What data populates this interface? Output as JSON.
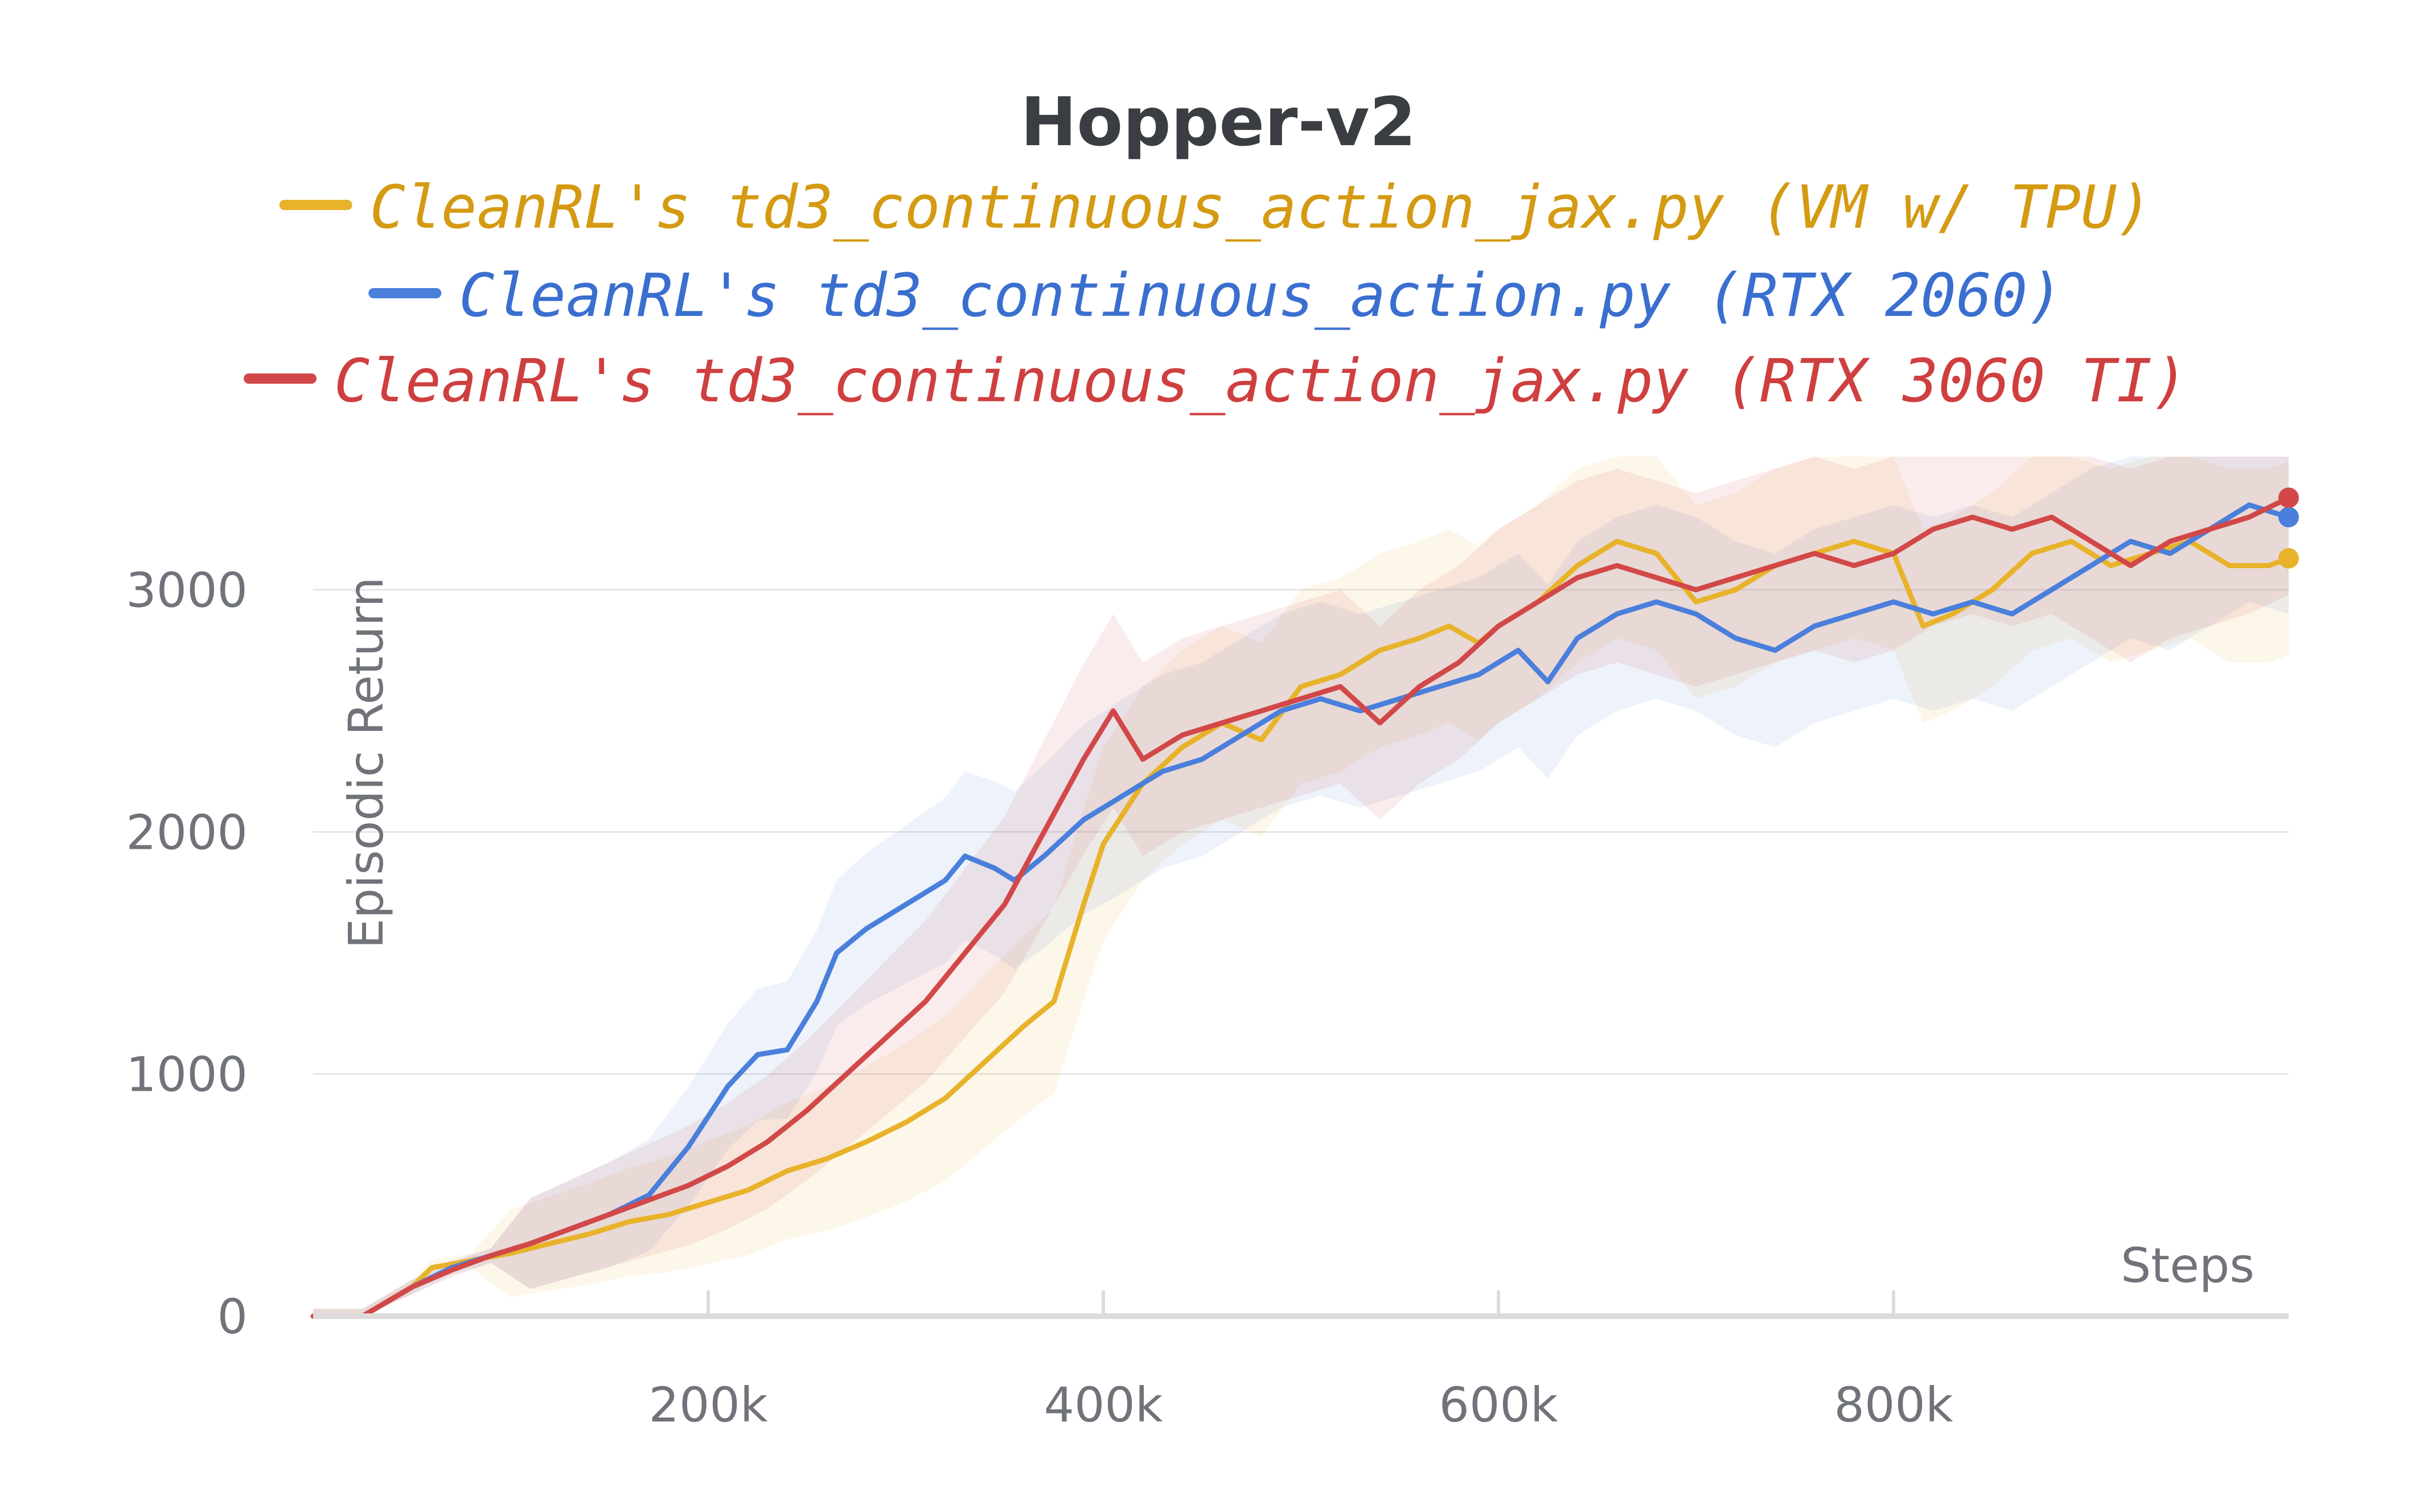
{
  "chart_data": {
    "type": "line",
    "title": "Hopper-v2",
    "xlabel": "Steps",
    "ylabel": "Episodic Return",
    "xlim": [
      0,
      1000000
    ],
    "ylim": [
      0,
      3500
    ],
    "x_ticks": [
      200000,
      400000,
      600000,
      800000
    ],
    "x_tick_labels": [
      "200k",
      "400k",
      "600k",
      "800k"
    ],
    "y_ticks": [
      0,
      1000,
      2000,
      3000
    ],
    "y_tick_labels": [
      "0",
      "1000",
      "2000",
      "3000"
    ],
    "grid": true,
    "legend_position": "top",
    "series": [
      {
        "name": "CleanRL's td3_continuous_action_jax.py (VM w/ TPU)",
        "color": "#e8b32a",
        "label_color": "#d49a12",
        "points": [
          [
            0,
            0
          ],
          [
            25000,
            0
          ],
          [
            50000,
            120
          ],
          [
            60000,
            200
          ],
          [
            80000,
            230
          ],
          [
            100000,
            260
          ],
          [
            120000,
            300
          ],
          [
            140000,
            340
          ],
          [
            160000,
            390
          ],
          [
            180000,
            420
          ],
          [
            200000,
            470
          ],
          [
            220000,
            520
          ],
          [
            240000,
            600
          ],
          [
            260000,
            650
          ],
          [
            280000,
            720
          ],
          [
            300000,
            800
          ],
          [
            320000,
            900
          ],
          [
            340000,
            1050
          ],
          [
            360000,
            1200
          ],
          [
            375000,
            1300
          ],
          [
            390000,
            1700
          ],
          [
            400000,
            1950
          ],
          [
            420000,
            2200
          ],
          [
            440000,
            2350
          ],
          [
            460000,
            2450
          ],
          [
            480000,
            2380
          ],
          [
            500000,
            2600
          ],
          [
            520000,
            2650
          ],
          [
            540000,
            2750
          ],
          [
            560000,
            2800
          ],
          [
            575000,
            2850
          ],
          [
            590000,
            2780
          ],
          [
            600000,
            2850
          ],
          [
            620000,
            2950
          ],
          [
            640000,
            3100
          ],
          [
            660000,
            3200
          ],
          [
            680000,
            3150
          ],
          [
            700000,
            2950
          ],
          [
            720000,
            3000
          ],
          [
            740000,
            3100
          ],
          [
            760000,
            3150
          ],
          [
            780000,
            3200
          ],
          [
            800000,
            3150
          ],
          [
            815000,
            2850
          ],
          [
            830000,
            2900
          ],
          [
            850000,
            3000
          ],
          [
            870000,
            3150
          ],
          [
            890000,
            3200
          ],
          [
            910000,
            3100
          ],
          [
            930000,
            3150
          ],
          [
            950000,
            3200
          ],
          [
            970000,
            3100
          ],
          [
            990000,
            3100
          ],
          [
            1000000,
            3130
          ]
        ]
      },
      {
        "name": "CleanRL's td3_continuous_action.py (RTX 2060)",
        "color": "#4a7fdb",
        "label_color": "#3a6fcf",
        "points": [
          [
            0,
            0
          ],
          [
            25000,
            0
          ],
          [
            50000,
            120
          ],
          [
            70000,
            200
          ],
          [
            90000,
            250
          ],
          [
            110000,
            300
          ],
          [
            130000,
            360
          ],
          [
            150000,
            420
          ],
          [
            170000,
            500
          ],
          [
            190000,
            700
          ],
          [
            210000,
            950
          ],
          [
            225000,
            1080
          ],
          [
            240000,
            1100
          ],
          [
            255000,
            1300
          ],
          [
            265000,
            1500
          ],
          [
            280000,
            1600
          ],
          [
            300000,
            1700
          ],
          [
            320000,
            1800
          ],
          [
            330000,
            1900
          ],
          [
            345000,
            1850
          ],
          [
            355000,
            1800
          ],
          [
            370000,
            1900
          ],
          [
            390000,
            2050
          ],
          [
            410000,
            2150
          ],
          [
            430000,
            2250
          ],
          [
            450000,
            2300
          ],
          [
            470000,
            2400
          ],
          [
            490000,
            2500
          ],
          [
            510000,
            2550
          ],
          [
            530000,
            2500
          ],
          [
            550000,
            2550
          ],
          [
            570000,
            2600
          ],
          [
            590000,
            2650
          ],
          [
            610000,
            2750
          ],
          [
            625000,
            2620
          ],
          [
            640000,
            2800
          ],
          [
            660000,
            2900
          ],
          [
            680000,
            2950
          ],
          [
            700000,
            2900
          ],
          [
            720000,
            2800
          ],
          [
            740000,
            2750
          ],
          [
            760000,
            2850
          ],
          [
            780000,
            2900
          ],
          [
            800000,
            2950
          ],
          [
            820000,
            2900
          ],
          [
            840000,
            2950
          ],
          [
            860000,
            2900
          ],
          [
            880000,
            3000
          ],
          [
            900000,
            3100
          ],
          [
            920000,
            3200
          ],
          [
            940000,
            3150
          ],
          [
            960000,
            3250
          ],
          [
            980000,
            3350
          ],
          [
            1000000,
            3300
          ]
        ]
      },
      {
        "name": "CleanRL's td3_continuous_action_jax.py (RTX 3060 TI)",
        "color": "#d24848",
        "label_color": "#cf3f3f",
        "points": [
          [
            0,
            0
          ],
          [
            25000,
            0
          ],
          [
            50000,
            120
          ],
          [
            70000,
            190
          ],
          [
            90000,
            250
          ],
          [
            110000,
            300
          ],
          [
            130000,
            360
          ],
          [
            150000,
            420
          ],
          [
            170000,
            480
          ],
          [
            190000,
            540
          ],
          [
            210000,
            620
          ],
          [
            230000,
            720
          ],
          [
            250000,
            850
          ],
          [
            270000,
            1000
          ],
          [
            290000,
            1150
          ],
          [
            310000,
            1300
          ],
          [
            330000,
            1500
          ],
          [
            350000,
            1700
          ],
          [
            370000,
            2000
          ],
          [
            390000,
            2300
          ],
          [
            405000,
            2500
          ],
          [
            420000,
            2300
          ],
          [
            440000,
            2400
          ],
          [
            460000,
            2450
          ],
          [
            480000,
            2500
          ],
          [
            500000,
            2550
          ],
          [
            520000,
            2600
          ],
          [
            540000,
            2450
          ],
          [
            560000,
            2600
          ],
          [
            580000,
            2700
          ],
          [
            600000,
            2850
          ],
          [
            620000,
            2950
          ],
          [
            640000,
            3050
          ],
          [
            660000,
            3100
          ],
          [
            680000,
            3050
          ],
          [
            700000,
            3000
          ],
          [
            720000,
            3050
          ],
          [
            740000,
            3100
          ],
          [
            760000,
            3150
          ],
          [
            780000,
            3100
          ],
          [
            800000,
            3150
          ],
          [
            820000,
            3250
          ],
          [
            840000,
            3300
          ],
          [
            860000,
            3250
          ],
          [
            880000,
            3300
          ],
          [
            900000,
            3200
          ],
          [
            920000,
            3100
          ],
          [
            940000,
            3200
          ],
          [
            960000,
            3250
          ],
          [
            980000,
            3300
          ],
          [
            1000000,
            3380
          ]
        ]
      }
    ]
  }
}
